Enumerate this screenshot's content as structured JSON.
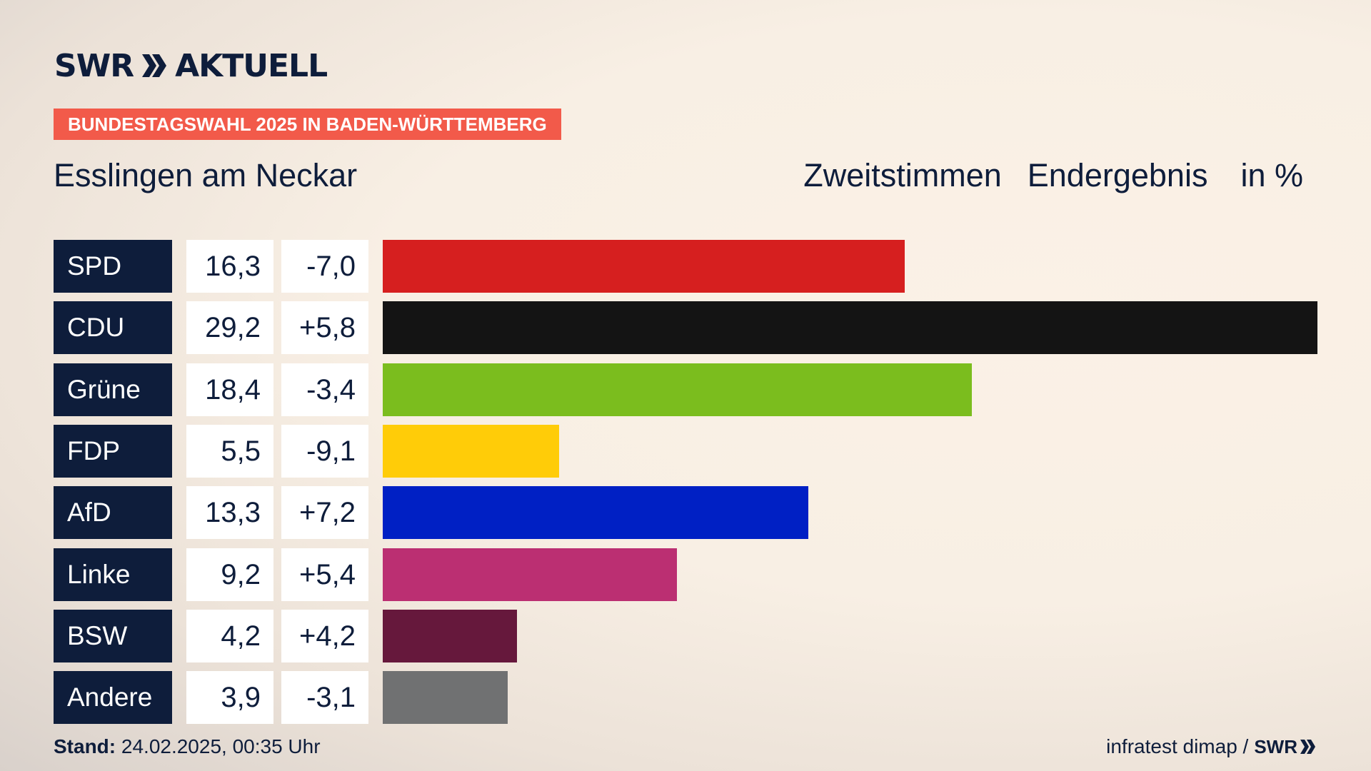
{
  "header": {
    "logo_left": "SWR",
    "logo_right": "AKTUELL",
    "banner": "BUNDESTAGSWAHL 2025 IN BADEN-WÜRTTEMBERG",
    "region": "Esslingen am Neckar",
    "label_vote": "Zweitstimmen",
    "label_status": "Endergebnis",
    "label_unit": "in %"
  },
  "colors": {
    "navy": "#0e1d3b",
    "banner": "#f25a4a"
  },
  "chart_data": {
    "type": "bar",
    "orientation": "horizontal",
    "categories": [
      "SPD",
      "CDU",
      "Grüne",
      "FDP",
      "AfD",
      "Linke",
      "BSW",
      "Andere"
    ],
    "values": [
      16.3,
      29.2,
      18.4,
      5.5,
      13.3,
      9.2,
      4.2,
      3.9
    ],
    "value_labels": [
      "16,3",
      "29,2",
      "18,4",
      "5,5",
      "13,3",
      "9,2",
      "4,2",
      "3,9"
    ],
    "diffs": [
      -7.0,
      5.8,
      -3.4,
      -9.1,
      7.2,
      5.4,
      4.2,
      -3.1
    ],
    "diff_labels": [
      "-7,0",
      "+5,8",
      "-3,4",
      "-9,1",
      "+7,2",
      "+5,4",
      "+4,2",
      "-3,1"
    ],
    "colors": [
      "#d61f1f",
      "#141414",
      "#7bbd1e",
      "#ffcc08",
      "#0020c4",
      "#bb2f72",
      "#66183c",
      "#707172"
    ],
    "xlim": [
      0,
      29.2
    ]
  },
  "footer": {
    "stand_label": "Stand:",
    "stand_value": "24.02.2025, 00:35 Uhr",
    "source": "infratest dimap /",
    "source_logo": "SWR"
  }
}
